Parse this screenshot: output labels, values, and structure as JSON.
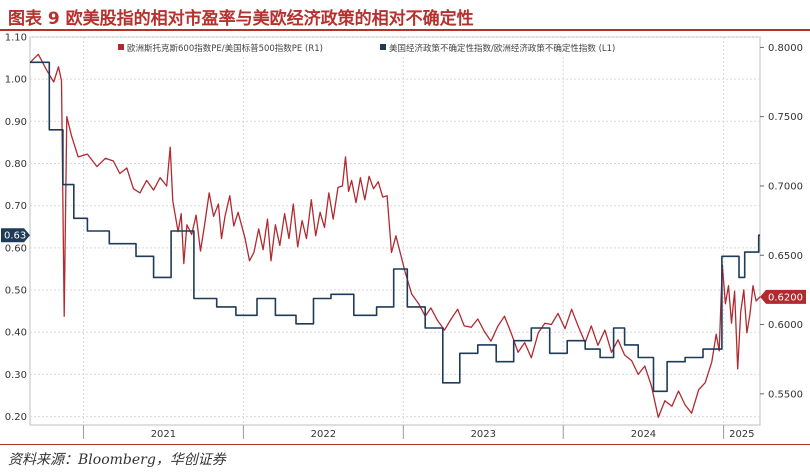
{
  "figure": {
    "title": "图表 9   欧美股指的相对市盈率与美欧经济政策的相对不确定性",
    "source": "资料来源：Bloomberg，华创证券"
  },
  "colors": {
    "pe_series": "#b02a30",
    "epu_series": "#1f3b57",
    "title": "#b6312e",
    "grid": "#d9d9d9"
  },
  "chart_data": {
    "type": "line",
    "x_type": "date",
    "x_range": [
      "2020-09-01",
      "2025-03-25"
    ],
    "x_tick_labels": [
      "2021",
      "2022",
      "2023",
      "2024",
      "2025"
    ],
    "left_axis": {
      "ylim": [
        0.18,
        1.1
      ],
      "ticks": [
        "1.10",
        "1.00",
        "0.90",
        "0.80",
        "0.70",
        "0.60",
        "0.50",
        "0.40",
        "0.30",
        "0.20"
      ],
      "series": "美国经济政策不确定性指数/欧洲经济政策不确定性指数 (L1)",
      "last_value_label": "0.63"
    },
    "right_axis": {
      "ylim": [
        0.5275,
        0.8075
      ],
      "ticks": [
        "0.8000",
        "0.7500",
        "0.7000",
        "0.6500",
        "0.6000",
        "0.5500"
      ],
      "series": "欧洲斯托克斯600指数PE/美国标普500指数PE (R1)",
      "last_value_label": "0.6200"
    },
    "grid": true,
    "legend_position": "top",
    "series": [
      {
        "name": "欧洲斯托克斯600指数PE/美国标普500指数PE (R1)",
        "axis": "right",
        "color": "#b02a30",
        "points": [
          [
            "2020-09-01",
            0.789
          ],
          [
            "2020-09-20",
            0.795
          ],
          [
            "2020-10-10",
            0.783
          ],
          [
            "2020-10-25",
            0.775
          ],
          [
            "2020-11-05",
            0.786
          ],
          [
            "2020-11-12",
            0.776
          ],
          [
            "2020-11-18",
            0.606
          ],
          [
            "2020-11-24",
            0.75
          ],
          [
            "2020-12-05",
            0.736
          ],
          [
            "2020-12-20",
            0.721
          ],
          [
            "2021-01-10",
            0.723
          ],
          [
            "2021-02-01",
            0.714
          ],
          [
            "2021-02-20",
            0.72
          ],
          [
            "2021-03-10",
            0.718
          ],
          [
            "2021-03-25",
            0.709
          ],
          [
            "2021-04-10",
            0.713
          ],
          [
            "2021-04-25",
            0.698
          ],
          [
            "2021-05-10",
            0.695
          ],
          [
            "2021-05-25",
            0.704
          ],
          [
            "2021-06-10",
            0.697
          ],
          [
            "2021-06-25",
            0.706
          ],
          [
            "2021-07-10",
            0.7
          ],
          [
            "2021-07-18",
            0.728
          ],
          [
            "2021-07-24",
            0.689
          ],
          [
            "2021-08-05",
            0.667
          ],
          [
            "2021-08-12",
            0.68
          ],
          [
            "2021-08-18",
            0.644
          ],
          [
            "2021-08-25",
            0.672
          ],
          [
            "2021-09-05",
            0.665
          ],
          [
            "2021-09-15",
            0.679
          ],
          [
            "2021-09-25",
            0.653
          ],
          [
            "2021-10-05",
            0.673
          ],
          [
            "2021-10-15",
            0.695
          ],
          [
            "2021-10-25",
            0.678
          ],
          [
            "2021-11-05",
            0.687
          ],
          [
            "2021-11-12",
            0.662
          ],
          [
            "2021-11-20",
            0.678
          ],
          [
            "2021-12-01",
            0.693
          ],
          [
            "2021-12-10",
            0.671
          ],
          [
            "2021-12-20",
            0.681
          ],
          [
            "2022-01-05",
            0.662
          ],
          [
            "2022-01-15",
            0.646
          ],
          [
            "2022-01-25",
            0.652
          ],
          [
            "2022-02-05",
            0.669
          ],
          [
            "2022-02-15",
            0.654
          ],
          [
            "2022-02-25",
            0.676
          ],
          [
            "2022-03-05",
            0.646
          ],
          [
            "2022-03-15",
            0.672
          ],
          [
            "2022-03-25",
            0.657
          ],
          [
            "2022-04-05",
            0.68
          ],
          [
            "2022-04-15",
            0.662
          ],
          [
            "2022-04-25",
            0.687
          ],
          [
            "2022-05-05",
            0.656
          ],
          [
            "2022-05-15",
            0.675
          ],
          [
            "2022-05-25",
            0.662
          ],
          [
            "2022-06-05",
            0.69
          ],
          [
            "2022-06-15",
            0.664
          ],
          [
            "2022-06-25",
            0.681
          ],
          [
            "2022-07-05",
            0.67
          ],
          [
            "2022-07-15",
            0.695
          ],
          [
            "2022-07-25",
            0.676
          ],
          [
            "2022-08-05",
            0.699
          ],
          [
            "2022-08-15",
            0.7
          ],
          [
            "2022-08-22",
            0.721
          ],
          [
            "2022-08-29",
            0.696
          ],
          [
            "2022-09-05",
            0.704
          ],
          [
            "2022-09-15",
            0.688
          ],
          [
            "2022-09-25",
            0.706
          ],
          [
            "2022-10-05",
            0.69
          ],
          [
            "2022-10-15",
            0.707
          ],
          [
            "2022-10-25",
            0.698
          ],
          [
            "2022-11-05",
            0.703
          ],
          [
            "2022-11-15",
            0.692
          ],
          [
            "2022-11-25",
            0.693
          ],
          [
            "2022-12-05",
            0.652
          ],
          [
            "2022-12-15",
            0.664
          ],
          [
            "2023-01-05",
            0.638
          ],
          [
            "2023-01-20",
            0.622
          ],
          [
            "2023-02-05",
            0.615
          ],
          [
            "2023-02-20",
            0.606
          ],
          [
            "2023-03-05",
            0.612
          ],
          [
            "2023-03-20",
            0.603
          ],
          [
            "2023-04-05",
            0.596
          ],
          [
            "2023-04-20",
            0.604
          ],
          [
            "2023-05-05",
            0.611
          ],
          [
            "2023-05-20",
            0.599
          ],
          [
            "2023-06-05",
            0.598
          ],
          [
            "2023-06-20",
            0.604
          ],
          [
            "2023-07-05",
            0.595
          ],
          [
            "2023-07-20",
            0.588
          ],
          [
            "2023-08-05",
            0.599
          ],
          [
            "2023-08-20",
            0.606
          ],
          [
            "2023-09-05",
            0.593
          ],
          [
            "2023-09-20",
            0.58
          ],
          [
            "2023-10-05",
            0.587
          ],
          [
            "2023-10-20",
            0.576
          ],
          [
            "2023-11-05",
            0.594
          ],
          [
            "2023-11-20",
            0.601
          ],
          [
            "2023-12-05",
            0.6
          ],
          [
            "2023-12-20",
            0.608
          ],
          [
            "2024-01-05",
            0.597
          ],
          [
            "2024-01-20",
            0.611
          ],
          [
            "2024-02-05",
            0.598
          ],
          [
            "2024-02-20",
            0.587
          ],
          [
            "2024-03-05",
            0.599
          ],
          [
            "2024-03-20",
            0.585
          ],
          [
            "2024-04-05",
            0.596
          ],
          [
            "2024-04-20",
            0.58
          ],
          [
            "2024-05-05",
            0.589
          ],
          [
            "2024-05-20",
            0.578
          ],
          [
            "2024-06-05",
            0.574
          ],
          [
            "2024-06-20",
            0.564
          ],
          [
            "2024-07-05",
            0.57
          ],
          [
            "2024-07-20",
            0.556
          ],
          [
            "2024-08-05",
            0.533
          ],
          [
            "2024-08-20",
            0.545
          ],
          [
            "2024-09-05",
            0.541
          ],
          [
            "2024-09-20",
            0.552
          ],
          [
            "2024-10-05",
            0.542
          ],
          [
            "2024-10-20",
            0.536
          ],
          [
            "2024-11-05",
            0.553
          ],
          [
            "2024-11-20",
            0.558
          ],
          [
            "2024-12-05",
            0.573
          ],
          [
            "2024-12-15",
            0.593
          ],
          [
            "2024-12-22",
            0.581
          ],
          [
            "2024-12-29",
            0.643
          ],
          [
            "2025-01-05",
            0.615
          ],
          [
            "2025-01-12",
            0.628
          ],
          [
            "2025-01-19",
            0.601
          ],
          [
            "2025-01-26",
            0.624
          ],
          [
            "2025-02-02",
            0.568
          ],
          [
            "2025-02-09",
            0.609
          ],
          [
            "2025-02-16",
            0.625
          ],
          [
            "2025-02-23",
            0.594
          ],
          [
            "2025-03-02",
            0.607
          ],
          [
            "2025-03-09",
            0.628
          ],
          [
            "2025-03-16",
            0.617
          ],
          [
            "2025-03-25",
            0.62
          ]
        ]
      },
      {
        "name": "美国经济政策不确定性指数/欧洲经济政策不确定性指数 (L1)",
        "axis": "left",
        "color": "#1f3b57",
        "points": [
          [
            "2020-09-01",
            1.04
          ],
          [
            "2020-10-15",
            1.04
          ],
          [
            "2020-10-15",
            0.88
          ],
          [
            "2020-11-15",
            0.88
          ],
          [
            "2020-11-15",
            0.75
          ],
          [
            "2020-12-10",
            0.75
          ],
          [
            "2020-12-10",
            0.67
          ],
          [
            "2021-01-10",
            0.67
          ],
          [
            "2021-01-10",
            0.64
          ],
          [
            "2021-03-01",
            0.64
          ],
          [
            "2021-03-01",
            0.61
          ],
          [
            "2021-05-01",
            0.61
          ],
          [
            "2021-05-01",
            0.58
          ],
          [
            "2021-06-10",
            0.58
          ],
          [
            "2021-06-10",
            0.53
          ],
          [
            "2021-07-20",
            0.53
          ],
          [
            "2021-07-20",
            0.64
          ],
          [
            "2021-09-10",
            0.64
          ],
          [
            "2021-09-10",
            0.48
          ],
          [
            "2021-11-01",
            0.48
          ],
          [
            "2021-11-01",
            0.46
          ],
          [
            "2021-12-15",
            0.46
          ],
          [
            "2021-12-15",
            0.44
          ],
          [
            "2022-02-01",
            0.44
          ],
          [
            "2022-02-01",
            0.48
          ],
          [
            "2022-03-15",
            0.48
          ],
          [
            "2022-03-15",
            0.44
          ],
          [
            "2022-05-01",
            0.44
          ],
          [
            "2022-05-01",
            0.42
          ],
          [
            "2022-06-10",
            0.42
          ],
          [
            "2022-06-10",
            0.48
          ],
          [
            "2022-07-20",
            0.48
          ],
          [
            "2022-07-20",
            0.49
          ],
          [
            "2022-09-10",
            0.49
          ],
          [
            "2022-09-10",
            0.44
          ],
          [
            "2022-11-01",
            0.44
          ],
          [
            "2022-11-01",
            0.46
          ],
          [
            "2022-12-10",
            0.46
          ],
          [
            "2022-12-10",
            0.55
          ],
          [
            "2023-01-10",
            0.55
          ],
          [
            "2023-01-10",
            0.46
          ],
          [
            "2023-02-20",
            0.46
          ],
          [
            "2023-02-20",
            0.41
          ],
          [
            "2023-04-01",
            0.41
          ],
          [
            "2023-04-01",
            0.28
          ],
          [
            "2023-05-10",
            0.28
          ],
          [
            "2023-05-10",
            0.35
          ],
          [
            "2023-06-20",
            0.35
          ],
          [
            "2023-06-20",
            0.37
          ],
          [
            "2023-08-01",
            0.37
          ],
          [
            "2023-08-01",
            0.33
          ],
          [
            "2023-09-10",
            0.33
          ],
          [
            "2023-09-10",
            0.38
          ],
          [
            "2023-10-20",
            0.38
          ],
          [
            "2023-10-20",
            0.41
          ],
          [
            "2023-12-01",
            0.41
          ],
          [
            "2023-12-01",
            0.35
          ],
          [
            "2024-01-10",
            0.35
          ],
          [
            "2024-01-10",
            0.38
          ],
          [
            "2024-02-20",
            0.38
          ],
          [
            "2024-02-20",
            0.36
          ],
          [
            "2024-03-25",
            0.36
          ],
          [
            "2024-03-25",
            0.34
          ],
          [
            "2024-04-25",
            0.34
          ],
          [
            "2024-04-25",
            0.41
          ],
          [
            "2024-05-20",
            0.41
          ],
          [
            "2024-05-20",
            0.37
          ],
          [
            "2024-06-20",
            0.37
          ],
          [
            "2024-06-20",
            0.34
          ],
          [
            "2024-07-25",
            0.34
          ],
          [
            "2024-07-25",
            0.26
          ],
          [
            "2024-08-25",
            0.26
          ],
          [
            "2024-08-25",
            0.33
          ],
          [
            "2024-10-05",
            0.33
          ],
          [
            "2024-10-05",
            0.34
          ],
          [
            "2024-11-15",
            0.34
          ],
          [
            "2024-11-15",
            0.36
          ],
          [
            "2024-12-28",
            0.36
          ],
          [
            "2024-12-28",
            0.58
          ],
          [
            "2025-02-05",
            0.58
          ],
          [
            "2025-02-05",
            0.53
          ],
          [
            "2025-02-18",
            0.53
          ],
          [
            "2025-02-18",
            0.59
          ],
          [
            "2025-03-22",
            0.59
          ],
          [
            "2025-03-22",
            0.63
          ],
          [
            "2025-03-25",
            0.63
          ]
        ]
      }
    ]
  }
}
